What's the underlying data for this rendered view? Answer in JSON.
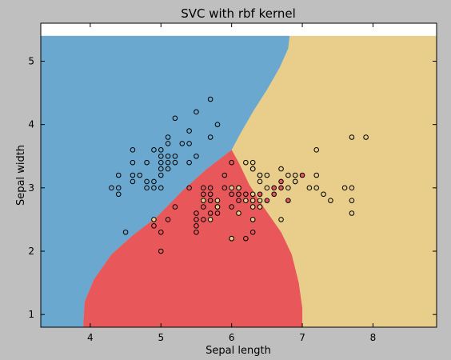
{
  "chart_data": {
    "type": "scatter",
    "title": "SVC with rbf kernel",
    "xlabel": "Sepal length",
    "ylabel": "Sepal width",
    "xlim": [
      3.3,
      8.9
    ],
    "ylim": [
      0.8,
      5.6
    ],
    "xticks": [
      4,
      5,
      6,
      7,
      8
    ],
    "yticks": [
      1,
      2,
      3,
      4,
      5
    ],
    "grid": false,
    "background_regions": [
      {
        "class": "setosa-region",
        "color": "#6aa8d0"
      },
      {
        "class": "versicolor-region",
        "color": "#e8575a"
      },
      {
        "class": "virginica-region",
        "color": "#e8cd8b"
      }
    ],
    "series": [
      {
        "color": "#6aa8d0",
        "points": [
          [
            4.3,
            3.0
          ],
          [
            4.4,
            2.9
          ],
          [
            4.4,
            3.0
          ],
          [
            4.4,
            3.2
          ],
          [
            4.5,
            2.3
          ],
          [
            4.6,
            3.1
          ],
          [
            4.6,
            3.2
          ],
          [
            4.6,
            3.4
          ],
          [
            4.6,
            3.6
          ],
          [
            4.7,
            3.2
          ],
          [
            4.8,
            3.0
          ],
          [
            4.8,
            3.1
          ],
          [
            4.8,
            3.4
          ],
          [
            4.9,
            3.0
          ],
          [
            4.9,
            3.1
          ],
          [
            4.9,
            3.6
          ],
          [
            5.0,
            3.0
          ],
          [
            5.0,
            3.2
          ],
          [
            5.0,
            3.3
          ],
          [
            5.0,
            3.4
          ],
          [
            5.0,
            3.5
          ],
          [
            5.0,
            3.6
          ],
          [
            5.1,
            3.3
          ],
          [
            5.1,
            3.4
          ],
          [
            5.1,
            3.5
          ],
          [
            5.1,
            3.7
          ],
          [
            5.1,
            3.8
          ],
          [
            5.2,
            3.4
          ],
          [
            5.2,
            3.5
          ],
          [
            5.2,
            4.1
          ],
          [
            5.3,
            3.7
          ],
          [
            5.4,
            3.4
          ],
          [
            5.4,
            3.7
          ],
          [
            5.4,
            3.9
          ],
          [
            5.5,
            3.5
          ],
          [
            5.5,
            4.2
          ],
          [
            5.7,
            3.8
          ],
          [
            5.7,
            4.4
          ],
          [
            5.8,
            4.0
          ]
        ]
      },
      {
        "color": "#e8575a",
        "points": [
          [
            4.9,
            2.4
          ],
          [
            5.0,
            2.0
          ],
          [
            5.0,
            2.3
          ],
          [
            5.1,
            2.5
          ],
          [
            5.2,
            2.7
          ],
          [
            5.4,
            3.0
          ],
          [
            5.5,
            2.3
          ],
          [
            5.5,
            2.4
          ],
          [
            5.5,
            2.5
          ],
          [
            5.5,
            2.6
          ],
          [
            5.6,
            2.5
          ],
          [
            5.6,
            2.7
          ],
          [
            5.6,
            2.9
          ],
          [
            5.6,
            3.0
          ],
          [
            5.7,
            2.6
          ],
          [
            5.7,
            2.8
          ],
          [
            5.7,
            2.9
          ],
          [
            5.7,
            3.0
          ],
          [
            5.8,
            2.6
          ],
          [
            5.8,
            2.7
          ],
          [
            5.9,
            3.0
          ],
          [
            5.9,
            3.2
          ],
          [
            6.0,
            2.2
          ],
          [
            6.0,
            2.7
          ],
          [
            6.0,
            2.9
          ],
          [
            6.0,
            3.4
          ],
          [
            6.1,
            2.8
          ],
          [
            6.1,
            2.9
          ],
          [
            6.1,
            3.0
          ],
          [
            6.2,
            2.2
          ],
          [
            6.2,
            2.9
          ],
          [
            6.3,
            2.3
          ],
          [
            6.3,
            2.5
          ],
          [
            6.3,
            3.3
          ],
          [
            6.4,
            2.9
          ],
          [
            6.4,
            3.2
          ],
          [
            6.5,
            2.8
          ],
          [
            6.6,
            2.9
          ],
          [
            6.6,
            3.0
          ],
          [
            6.7,
            3.0
          ],
          [
            6.7,
            3.1
          ],
          [
            6.8,
            2.8
          ],
          [
            6.9,
            3.1
          ],
          [
            7.0,
            3.2
          ]
        ]
      },
      {
        "color": "#e8cd8b",
        "points": [
          [
            4.9,
            2.5
          ],
          [
            5.6,
            2.8
          ],
          [
            5.7,
            2.5
          ],
          [
            5.8,
            2.7
          ],
          [
            5.8,
            2.8
          ],
          [
            6.0,
            2.2
          ],
          [
            6.0,
            3.0
          ],
          [
            6.1,
            2.6
          ],
          [
            6.1,
            3.0
          ],
          [
            6.2,
            2.8
          ],
          [
            6.2,
            3.4
          ],
          [
            6.3,
            2.5
          ],
          [
            6.3,
            2.7
          ],
          [
            6.3,
            2.8
          ],
          [
            6.3,
            2.9
          ],
          [
            6.3,
            3.3
          ],
          [
            6.3,
            3.4
          ],
          [
            6.4,
            2.7
          ],
          [
            6.4,
            2.8
          ],
          [
            6.4,
            3.1
          ],
          [
            6.4,
            3.2
          ],
          [
            6.5,
            3.0
          ],
          [
            6.5,
            3.2
          ],
          [
            6.7,
            2.5
          ],
          [
            6.7,
            3.3
          ],
          [
            6.8,
            3.0
          ],
          [
            6.8,
            3.2
          ],
          [
            6.9,
            3.1
          ],
          [
            6.9,
            3.2
          ],
          [
            7.1,
            3.0
          ],
          [
            7.2,
            3.0
          ],
          [
            7.2,
            3.2
          ],
          [
            7.2,
            3.6
          ],
          [
            7.3,
            2.9
          ],
          [
            7.4,
            2.8
          ],
          [
            7.6,
            3.0
          ],
          [
            7.7,
            2.6
          ],
          [
            7.7,
            2.8
          ],
          [
            7.7,
            3.0
          ],
          [
            7.7,
            3.8
          ],
          [
            7.9,
            3.8
          ]
        ]
      }
    ]
  }
}
